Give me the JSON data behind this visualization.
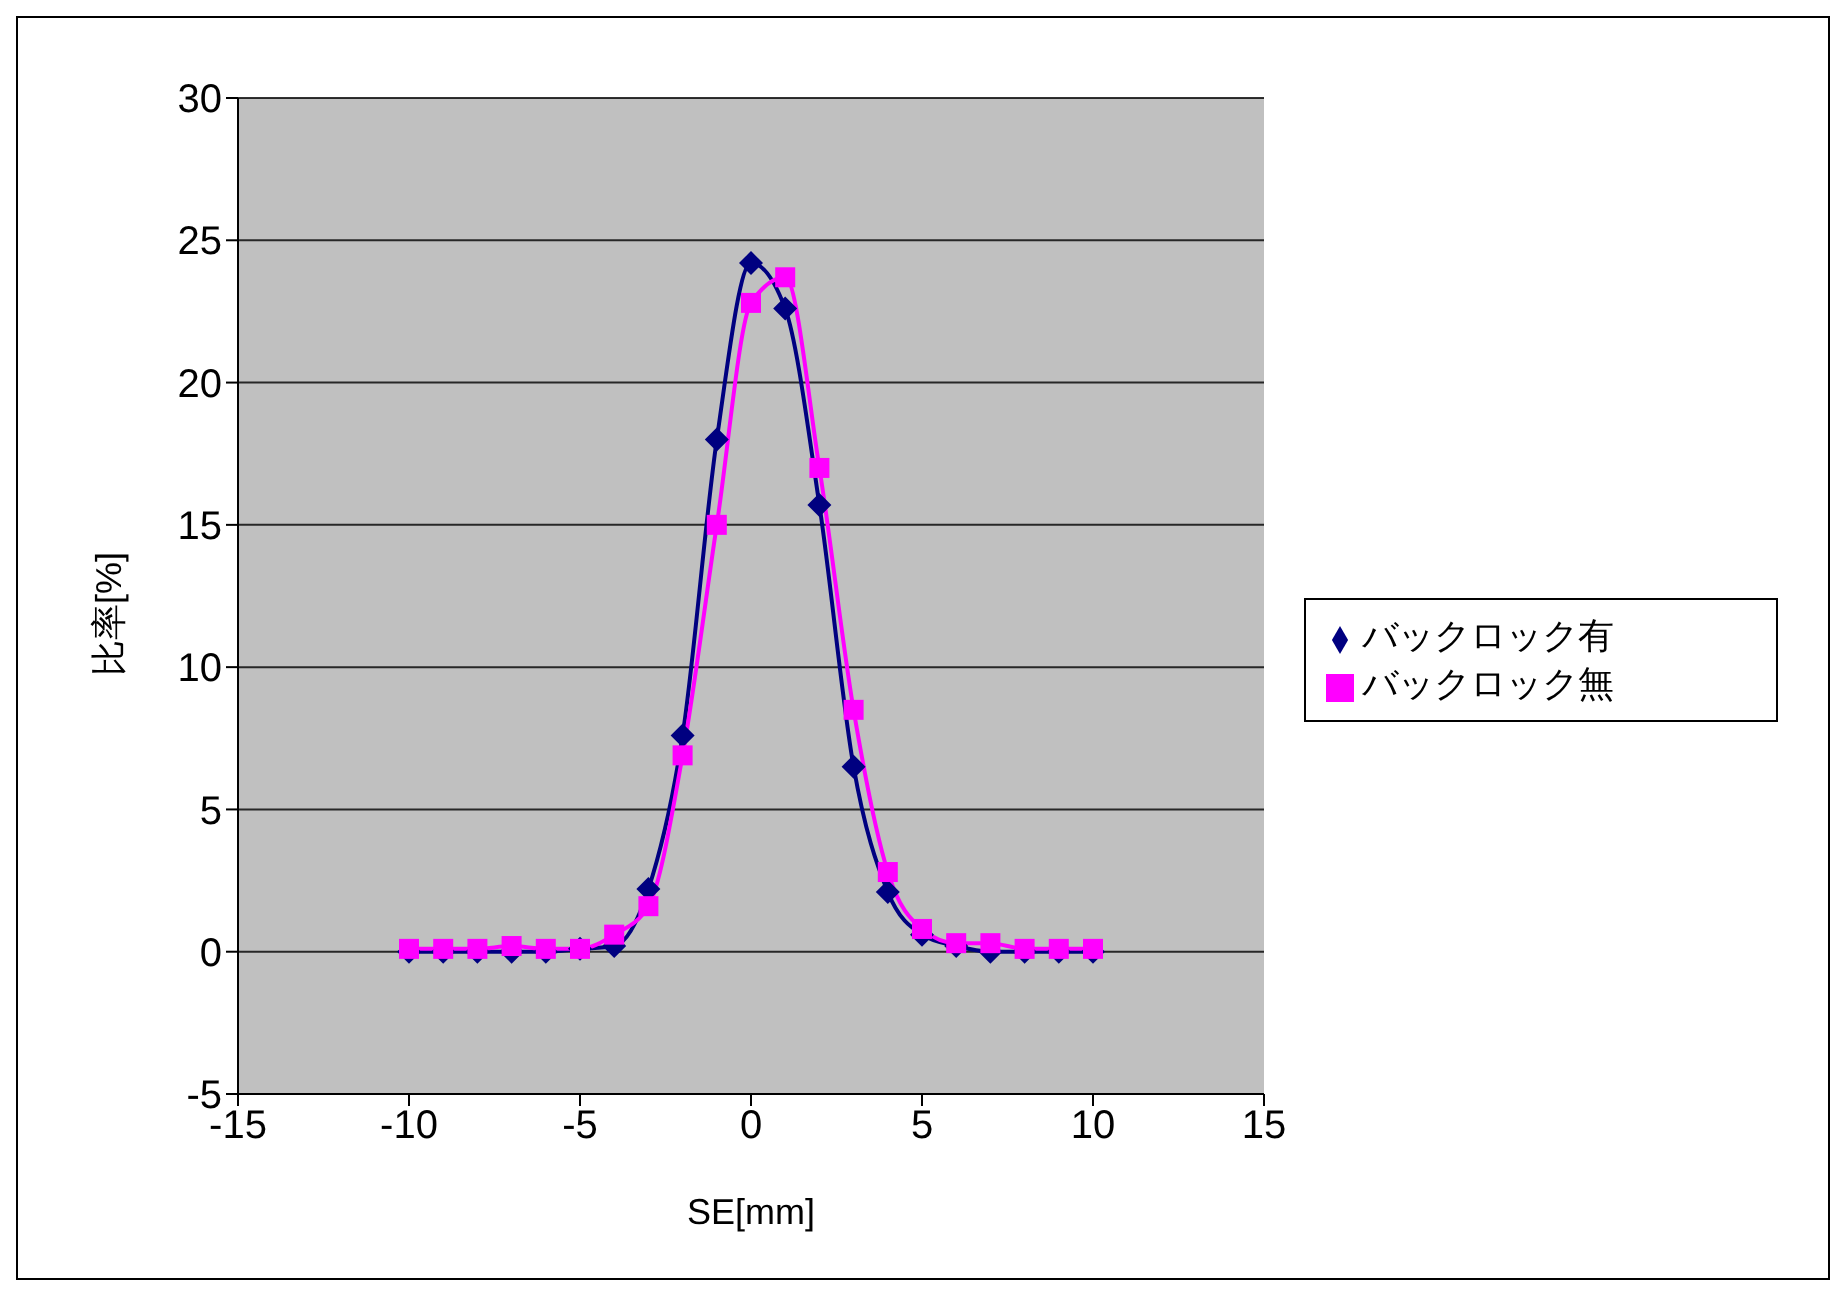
{
  "chart_data": {
    "type": "line",
    "xlabel": "SE[mm]",
    "ylabel": "比率[%]",
    "x": [
      -10,
      -9,
      -8,
      -7,
      -6,
      -5,
      -4,
      -3,
      -2,
      -1,
      0,
      1,
      2,
      3,
      4,
      5,
      6,
      7,
      8,
      9,
      10
    ],
    "series": [
      {
        "name": "バックロック有",
        "color": "#000080",
        "marker": "diamond",
        "values": [
          0,
          0,
          0,
          0,
          0,
          0.1,
          0.2,
          2.2,
          7.6,
          18,
          24.2,
          22.6,
          15.7,
          6.5,
          2.1,
          0.6,
          0.2,
          0,
          0,
          0,
          0
        ]
      },
      {
        "name": "バックロック無",
        "color": "#ff00ff",
        "marker": "square",
        "values": [
          0.1,
          0.1,
          0.1,
          0.2,
          0.1,
          0.1,
          0.6,
          1.6,
          6.9,
          15,
          22.8,
          23.7,
          17,
          8.5,
          2.8,
          0.8,
          0.3,
          0.3,
          0.1,
          0.1,
          0.1
        ]
      }
    ],
    "xlim": [
      -15,
      15
    ],
    "xticks": [
      -15,
      -10,
      -5,
      0,
      5,
      10,
      15
    ],
    "ylim": [
      -5,
      30
    ],
    "yticks": [
      -5,
      0,
      5,
      10,
      15,
      20,
      25,
      30
    ],
    "grid": "y",
    "legend": "right",
    "line_style": "solid"
  }
}
